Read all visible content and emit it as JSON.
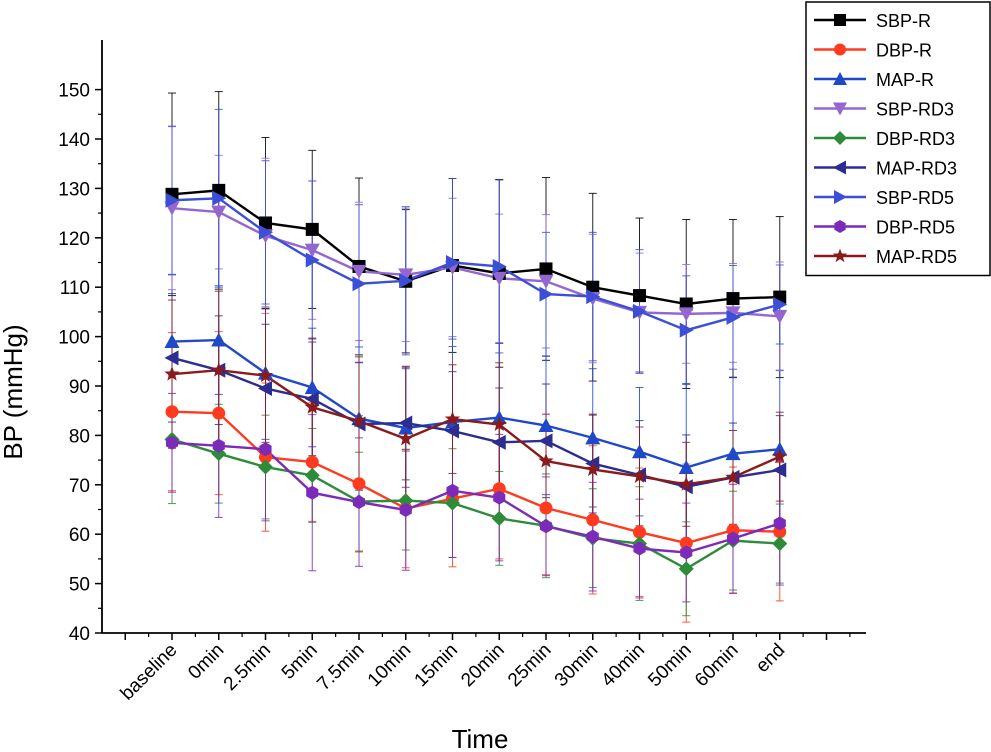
{
  "chart_data": {
    "type": "line",
    "title": "",
    "xlabel": "Time",
    "ylabel": "BP (mmHg)",
    "ylim": [
      40,
      155
    ],
    "yticks": [
      40,
      50,
      60,
      70,
      80,
      90,
      100,
      110,
      120,
      130,
      140,
      150
    ],
    "categories": [
      "baseline",
      "0min",
      "2.5min",
      "5min",
      "7.5min",
      "10min",
      "15min",
      "20min",
      "25min",
      "30min",
      "40min",
      "50min",
      "60min",
      "end"
    ],
    "legend_position": "top-right",
    "series": [
      {
        "name": "SBP-R",
        "color": "#000000",
        "marker": "square",
        "values": [
          128.8,
          129.6,
          123.0,
          121.7,
          114.2,
          111.2,
          114.4,
          112.8,
          113.7,
          110.0,
          108.3,
          106.6,
          107.7,
          108.0
        ],
        "errors": [
          20.5,
          20.0,
          17.3,
          16.0,
          17.9,
          14.5,
          17.6,
          19.0,
          18.5,
          19.0,
          15.7,
          17.1,
          16.0,
          16.3
        ]
      },
      {
        "name": "DBP-R",
        "color": "#ff3b1f",
        "marker": "circle",
        "values": [
          84.8,
          84.5,
          75.6,
          74.6,
          70.2,
          65.2,
          67.2,
          69.2,
          65.3,
          62.9,
          60.4,
          58.2,
          60.8,
          60.5
        ],
        "errors": [
          16.0,
          16.5,
          15.0,
          12.0,
          13.8,
          12.0,
          13.8,
          14.2,
          13.5,
          15.0,
          13.0,
          16.0,
          12.8,
          14.0
        ]
      },
      {
        "name": "MAP-R",
        "color": "#1f49c9",
        "marker": "triangle-up",
        "values": [
          99.0,
          99.3,
          92.6,
          89.7,
          83.4,
          81.5,
          82.7,
          83.6,
          82.0,
          79.5,
          76.7,
          73.5,
          76.3,
          77.2
        ],
        "errors": [
          13.5,
          11.0,
          13.4,
          12.0,
          14.5,
          12.0,
          16.8,
          15.0,
          14.0,
          14.0,
          13.0,
          17.0,
          15.5,
          16.0
        ]
      },
      {
        "name": "SBP-RD3",
        "color": "#9467d0",
        "marker": "triangle-down",
        "values": [
          126.0,
          125.2,
          120.4,
          117.5,
          113.2,
          112.5,
          114.0,
          111.8,
          111.2,
          107.7,
          104.9,
          104.6,
          104.8,
          104.1
        ],
        "errors": [
          16.5,
          11.5,
          15.7,
          14.0,
          14.0,
          13.5,
          14.0,
          13.0,
          13.5,
          13.0,
          12.0,
          10.0,
          10.0,
          11.0
        ]
      },
      {
        "name": "DBP-RD3",
        "color": "#2e8b3a",
        "marker": "diamond",
        "values": [
          79.2,
          76.3,
          73.6,
          71.9,
          66.6,
          66.8,
          66.3,
          63.2,
          61.7,
          59.2,
          58.1,
          53.0,
          58.7,
          58.1
        ],
        "errors": [
          13.0,
          10.0,
          10.5,
          9.5,
          10.0,
          10.0,
          11.0,
          9.5,
          10.5,
          10.0,
          11.5,
          9.5,
          10.0,
          8.0
        ]
      },
      {
        "name": "MAP-RD3",
        "color": "#2b2d91",
        "marker": "triangle-left",
        "values": [
          95.7,
          93.2,
          89.5,
          87.4,
          82.3,
          82.5,
          80.9,
          78.6,
          78.9,
          74.3,
          72.0,
          69.6,
          71.5,
          73.0
        ],
        "errors": [
          13.0,
          11.0,
          13.0,
          11.5,
          12.5,
          11.5,
          12.0,
          11.0,
          11.5,
          10.0,
          11.0,
          10.5,
          11.0,
          11.0
        ]
      },
      {
        "name": "SBP-RD5",
        "color": "#3d4fd6",
        "marker": "triangle-right",
        "values": [
          127.6,
          128.0,
          121.1,
          115.5,
          110.7,
          111.3,
          115.0,
          114.2,
          108.6,
          108.1,
          105.1,
          101.3,
          103.9,
          106.5
        ],
        "errors": [
          15.0,
          18.0,
          14.5,
          16.0,
          16.0,
          15.0,
          17.0,
          17.5,
          12.5,
          13.0,
          12.5,
          11.0,
          10.5,
          8.0
        ]
      },
      {
        "name": "DBP-RD5",
        "color": "#7c2ab8",
        "marker": "hexagon",
        "values": [
          78.5,
          77.9,
          77.2,
          68.4,
          66.5,
          64.9,
          68.8,
          67.4,
          61.6,
          59.5,
          57.1,
          56.3,
          59.1,
          62.2
        ],
        "errors": [
          10.0,
          14.5,
          14.5,
          15.8,
          13.0,
          12.2,
          13.5,
          12.8,
          10.0,
          11.0,
          10.0,
          10.0,
          11.0,
          12.5
        ]
      },
      {
        "name": "MAP-RD5",
        "color": "#8b1a1a",
        "marker": "star",
        "values": [
          92.4,
          93.2,
          92.1,
          85.7,
          82.9,
          79.3,
          83.3,
          82.2,
          74.8,
          73.1,
          71.7,
          70.1,
          71.5,
          75.7
        ],
        "errors": [
          15.0,
          16.0,
          13.5,
          14.0,
          13.0,
          14.5,
          11.0,
          12.5,
          9.5,
          11.0,
          10.0,
          8.5,
          9.5,
          9.0
        ]
      }
    ]
  }
}
